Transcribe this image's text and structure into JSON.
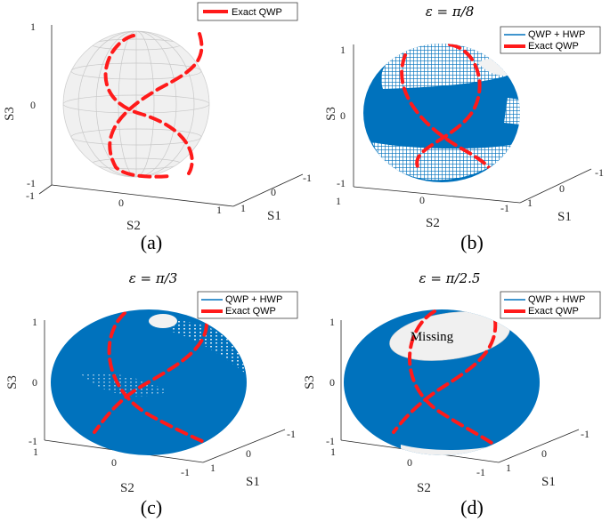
{
  "panels": [
    {
      "id": "a",
      "caption": "(a)",
      "title": "",
      "legend": [
        "Exact QWP"
      ],
      "coverage": "none",
      "axis_labels": {
        "x": "S2",
        "y": "S1",
        "z": "S3"
      },
      "x_ticks": [
        "-1",
        "0",
        "1"
      ],
      "y_ticks": [
        "1",
        "0",
        "-1"
      ],
      "z_ticks": [
        "1",
        "0",
        "-1"
      ],
      "annotation": ""
    },
    {
      "id": "b",
      "caption": "(b)",
      "title": "ε = π/8",
      "legend": [
        "QWP + HWP",
        "Exact QWP"
      ],
      "coverage": "partial-top-and-bottom",
      "axis_labels": {
        "x": "S2",
        "y": "S1",
        "z": "S3"
      },
      "x_ticks": [
        "1",
        "0",
        "-1"
      ],
      "y_ticks": [
        "1",
        "0",
        "-1"
      ],
      "z_ticks": [
        "1",
        "0",
        "-1"
      ],
      "annotation": ""
    },
    {
      "id": "c",
      "caption": "(c)",
      "title": "ε = π/3",
      "legend": [
        "QWP + HWP",
        "Exact QWP"
      ],
      "coverage": "nearly-full",
      "axis_labels": {
        "x": "S2",
        "y": "S1",
        "z": "S3"
      },
      "x_ticks": [
        "1",
        "0",
        "-1"
      ],
      "y_ticks": [
        "1",
        "0",
        "-1"
      ],
      "z_ticks": [
        "1",
        "0",
        "-1"
      ],
      "annotation": ""
    },
    {
      "id": "d",
      "caption": "(d)",
      "title": "ε = π/2.5",
      "legend": [
        "QWP + HWP",
        "Exact QWP"
      ],
      "coverage": "missing-top-cap",
      "axis_labels": {
        "x": "S2",
        "y": "S1",
        "z": "S3"
      },
      "x_ticks": [
        "1",
        "0",
        "-1"
      ],
      "y_ticks": [
        "1",
        "0",
        "-1"
      ],
      "z_ticks": [
        "1",
        "0",
        "-1"
      ],
      "annotation": "Missing"
    }
  ],
  "colors": {
    "sphere_fill": "#f0f0f0",
    "sphere_grid": "#c8c8c8",
    "coverage": "#0072bd",
    "exact_qwp": "#ff1a1a",
    "axis": "#262626"
  }
}
